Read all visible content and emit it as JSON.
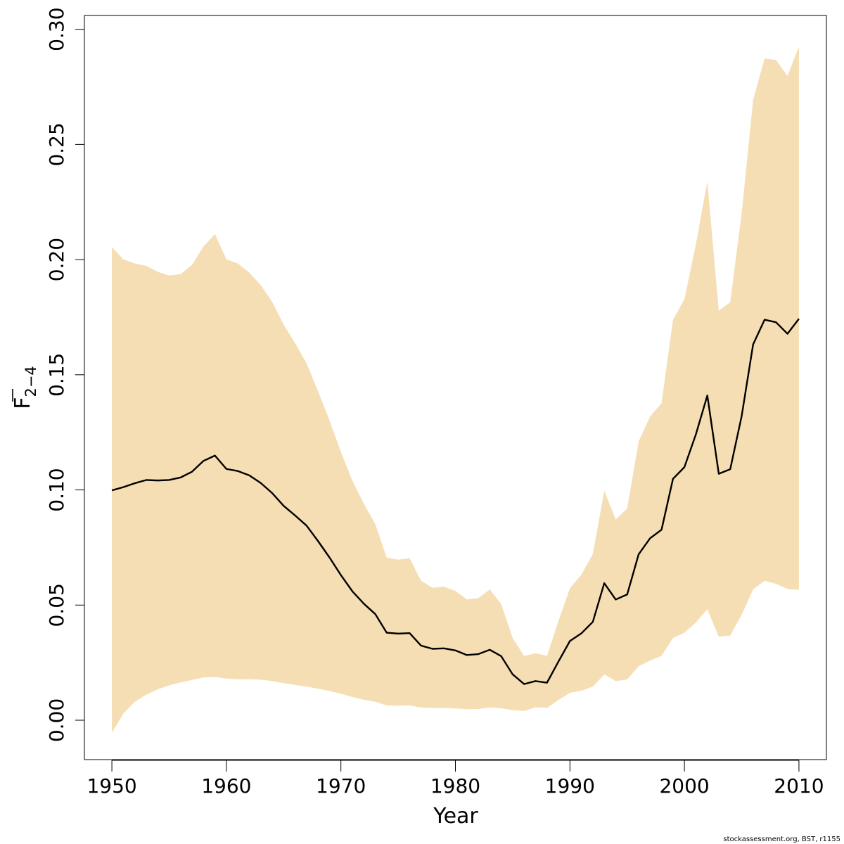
{
  "chart_data": {
    "type": "area",
    "title": "",
    "xlabel": "Year",
    "ylabel": {
      "main": "F",
      "subscript": "2−4"
    },
    "xlim": [
      1947.6,
      2012.4
    ],
    "ylim": [
      -0.0171,
      0.306
    ],
    "x_ticks": [
      1950,
      1960,
      1970,
      1980,
      1990,
      2000,
      2010
    ],
    "x_tick_labels": [
      "1950",
      "1960",
      "1970",
      "1980",
      "1990",
      "2000",
      "2010"
    ],
    "y_ticks": [
      0.0,
      0.05,
      0.1,
      0.15,
      0.2,
      0.25,
      0.3
    ],
    "y_tick_labels": [
      "0.00",
      "0.05",
      "0.10",
      "0.15",
      "0.20",
      "0.25",
      "0.30"
    ],
    "grid": false,
    "band_color": "#F5DEB3",
    "line_color": "#000000",
    "x": [
      1950,
      1951,
      1952,
      1953,
      1954,
      1955,
      1956,
      1957,
      1958,
      1959,
      1960,
      1961,
      1962,
      1963,
      1964,
      1965,
      1966,
      1967,
      1968,
      1969,
      1970,
      1971,
      1972,
      1973,
      1974,
      1975,
      1976,
      1977,
      1978,
      1979,
      1980,
      1981,
      1982,
      1983,
      1984,
      1985,
      1986,
      1987,
      1988,
      1989,
      1990,
      1991,
      1992,
      1993,
      1994,
      1995,
      1996,
      1997,
      1998,
      1999,
      2000,
      2001,
      2002,
      2003,
      2004,
      2005,
      2006,
      2007,
      2008,
      2009,
      2010
    ],
    "series": [
      {
        "values": [
          0.0998,
          0.1012,
          0.1029,
          0.1043,
          0.1041,
          0.1043,
          0.1054,
          0.1079,
          0.1126,
          0.1149,
          0.1091,
          0.1082,
          0.1063,
          0.103,
          0.0986,
          0.0931,
          0.0889,
          0.0845,
          0.0778,
          0.0707,
          0.063,
          0.056,
          0.0506,
          0.0461,
          0.038,
          0.0376,
          0.0378,
          0.0324,
          0.031,
          0.0312,
          0.0303,
          0.0283,
          0.0287,
          0.0306,
          0.0278,
          0.0199,
          0.0157,
          0.017,
          0.0163,
          0.0255,
          0.0344,
          0.0377,
          0.0427,
          0.0595,
          0.0524,
          0.0546,
          0.072,
          0.079,
          0.0827,
          0.1048,
          0.1099,
          0.1241,
          0.141,
          0.107,
          0.109,
          0.1321,
          0.1632,
          0.1739,
          0.1728,
          0.1678,
          0.1743
        ]
      }
    ],
    "band": {
      "upper": [
        0.2055,
        0.2001,
        0.1983,
        0.1973,
        0.1947,
        0.1931,
        0.1937,
        0.1977,
        0.2057,
        0.2111,
        0.2001,
        0.1983,
        0.1944,
        0.1889,
        0.1816,
        0.1718,
        0.1637,
        0.155,
        0.1429,
        0.1302,
        0.1165,
        0.104,
        0.094,
        0.0852,
        0.0706,
        0.0697,
        0.0703,
        0.0606,
        0.0575,
        0.058,
        0.0561,
        0.0525,
        0.053,
        0.0568,
        0.0504,
        0.0357,
        0.0279,
        0.0291,
        0.028,
        0.0431,
        0.0573,
        0.0632,
        0.0722,
        0.0996,
        0.0872,
        0.0919,
        0.121,
        0.1319,
        0.1376,
        0.1738,
        0.1828,
        0.2066,
        0.234,
        0.1778,
        0.1815,
        0.2202,
        0.2694,
        0.2873,
        0.2867,
        0.2797,
        0.2925
      ],
      "lower": [
        -0.0055,
        0.0029,
        0.008,
        0.0111,
        0.0134,
        0.0151,
        0.0164,
        0.0175,
        0.0186,
        0.0188,
        0.0181,
        0.0178,
        0.0178,
        0.0176,
        0.017,
        0.0161,
        0.0153,
        0.0146,
        0.0137,
        0.0127,
        0.0115,
        0.0101,
        0.0089,
        0.008,
        0.0064,
        0.0063,
        0.0064,
        0.0055,
        0.0053,
        0.0053,
        0.0051,
        0.0048,
        0.0049,
        0.0055,
        0.0052,
        0.0044,
        0.004,
        0.0056,
        0.0054,
        0.0088,
        0.0119,
        0.0128,
        0.0146,
        0.0199,
        0.017,
        0.0177,
        0.0234,
        0.0259,
        0.028,
        0.0357,
        0.038,
        0.0424,
        0.0482,
        0.0363,
        0.0368,
        0.0458,
        0.0568,
        0.0605,
        0.0592,
        0.057,
        0.0566
      ]
    }
  },
  "credit": "stockassessment.org, BST, r1155"
}
